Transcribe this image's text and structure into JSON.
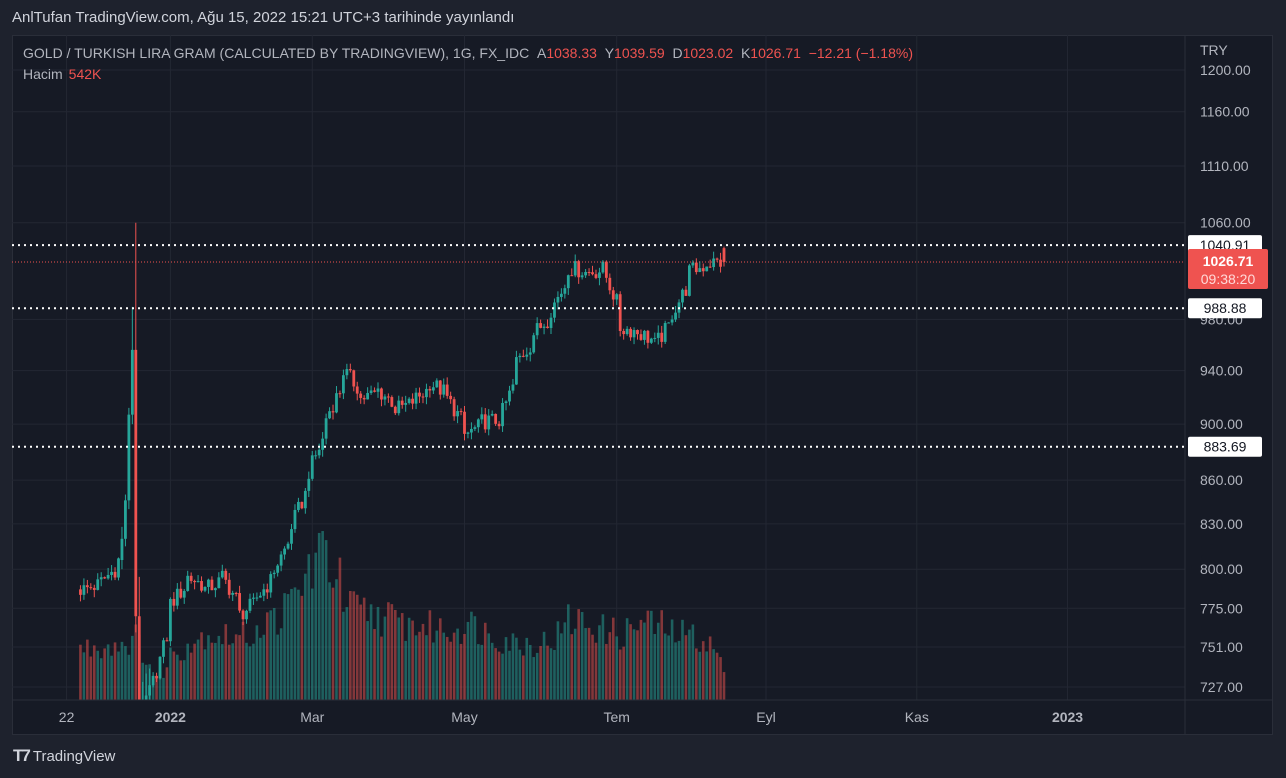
{
  "header": {
    "published_line": "AnlTufan TradingView.com, Ağu 15, 2022 15:21 UTC+3 tarihinde yayınlandı"
  },
  "legend": {
    "symbol": "GOLD / TURKISH LIRA GRAM (CALCULATED BY TRADINGVIEW), 1G, FX_IDC",
    "open_label": "A",
    "open": "1038.33",
    "high_label": "Y",
    "high": "1039.59",
    "low_label": "D",
    "low": "1023.02",
    "close_label": "K",
    "close": "1026.71",
    "change": "−12.21 (−1.18%)",
    "volume_label": "Hacim",
    "volume": "542K"
  },
  "footer": {
    "brand": "TradingView",
    "logo_icon": "tradingview-logo-icon"
  },
  "chart_data": {
    "type": "candlestick",
    "currency": "TRY",
    "y_scale": "log",
    "ylim": [
      727,
      1200
    ],
    "y_ticks": [
      "1200.00",
      "1160.00",
      "1110.00",
      "1060.00",
      "980.00",
      "940.00",
      "900.00",
      "860.00",
      "830.00",
      "800.00",
      "775.00",
      "751.00",
      "727.00"
    ],
    "x_ticks": [
      {
        "label": "22",
        "date": "2021-11-22",
        "bold": false
      },
      {
        "label": "2022",
        "date": "2022-01-01",
        "bold": true
      },
      {
        "label": "Mar",
        "date": "2022-03-01",
        "bold": false
      },
      {
        "label": "May",
        "date": "2022-05-01",
        "bold": false
      },
      {
        "label": "Tem",
        "date": "2022-07-01",
        "bold": false
      },
      {
        "label": "Eyl",
        "date": "2022-09-01",
        "bold": false
      },
      {
        "label": "Kas",
        "date": "2022-11-01",
        "bold": false
      },
      {
        "label": "2023",
        "date": "2023-01-01",
        "bold": true
      }
    ],
    "last_date": "2022-08-15",
    "horizontal_lines": [
      {
        "price": 1040.91,
        "label": "1040.91"
      },
      {
        "price": 988.88,
        "label": "988.88"
      },
      {
        "price": 883.69,
        "label": "883.69"
      }
    ],
    "last_price": {
      "price": 1026.71,
      "label": "1026.71",
      "countdown": "09:38:20"
    },
    "colors": {
      "up": "#26a69a",
      "down": "#ef5350",
      "background": "#161a25",
      "grid": "#232733",
      "hline": "#ffffff"
    },
    "grid": true,
    "weekly_close": [
      [
        "2021-11-29",
        787
      ],
      [
        "2021-12-06",
        792
      ],
      [
        "2021-12-13",
        806
      ],
      [
        "2021-12-20",
        956
      ],
      [
        "2021-12-27",
        730
      ],
      [
        "2022-01-03",
        778
      ],
      [
        "2022-01-10",
        795
      ],
      [
        "2022-01-17",
        787
      ],
      [
        "2022-01-24",
        795
      ],
      [
        "2022-01-31",
        771
      ],
      [
        "2022-02-07",
        782
      ],
      [
        "2022-02-14",
        800
      ],
      [
        "2022-02-21",
        829
      ],
      [
        "2022-02-28",
        866
      ],
      [
        "2022-03-07",
        905
      ],
      [
        "2022-03-14",
        940
      ],
      [
        "2022-03-21",
        919
      ],
      [
        "2022-03-28",
        925
      ],
      [
        "2022-04-04",
        911
      ],
      [
        "2022-04-11",
        917
      ],
      [
        "2022-04-18",
        931
      ],
      [
        "2022-04-25",
        919
      ],
      [
        "2022-05-02",
        892
      ],
      [
        "2022-05-09",
        902
      ],
      [
        "2022-05-16",
        903
      ],
      [
        "2022-05-23",
        947
      ],
      [
        "2022-05-30",
        969
      ],
      [
        "2022-06-06",
        988
      ],
      [
        "2022-06-13",
        1022
      ],
      [
        "2022-06-20",
        1018
      ],
      [
        "2022-06-27",
        1021
      ],
      [
        "2022-07-04",
        973
      ],
      [
        "2022-07-11",
        970
      ],
      [
        "2022-07-18",
        960
      ],
      [
        "2022-07-25",
        985
      ],
      [
        "2022-08-01",
        1019
      ],
      [
        "2022-08-08",
        1026
      ],
      [
        "2022-08-15",
        1026.71
      ]
    ],
    "daily_ohlc": [
      [
        "2021-12-14",
        806,
        828,
        800,
        820
      ],
      [
        "2021-12-15",
        820,
        850,
        815,
        846
      ],
      [
        "2021-12-16",
        846,
        912,
        840,
        907
      ],
      [
        "2021-12-17",
        907,
        990,
        900,
        956
      ],
      [
        "2021-12-20",
        956,
        1060,
        760,
        770
      ],
      [
        "2021-12-21",
        770,
        795,
        700,
        712
      ],
      [
        "2021-12-22",
        712,
        730,
        700,
        718
      ],
      [
        "2021-12-23",
        718,
        735,
        705,
        722
      ],
      [
        "2021-12-24",
        722,
        738,
        712,
        728
      ],
      [
        "2022-08-15",
        1038.33,
        1039.59,
        1023.02,
        1026.71
      ]
    ],
    "weekly_volume_k": [
      [
        "2021-11-29",
        1000
      ],
      [
        "2021-12-06",
        1050
      ],
      [
        "2021-12-13",
        1100
      ],
      [
        "2021-12-20",
        1200
      ],
      [
        "2021-12-27",
        300
      ],
      [
        "2022-01-03",
        900
      ],
      [
        "2022-01-10",
        1100
      ],
      [
        "2022-01-17",
        1300
      ],
      [
        "2022-01-24",
        1250
      ],
      [
        "2022-01-31",
        1200
      ],
      [
        "2022-02-07",
        1400
      ],
      [
        "2022-02-14",
        1600
      ],
      [
        "2022-02-21",
        1900
      ],
      [
        "2022-02-28",
        2600
      ],
      [
        "2022-03-07",
        2900
      ],
      [
        "2022-03-14",
        1800
      ],
      [
        "2022-03-21",
        1700
      ],
      [
        "2022-03-28",
        1650
      ],
      [
        "2022-04-04",
        1500
      ],
      [
        "2022-04-11",
        1450
      ],
      [
        "2022-04-18",
        1400
      ],
      [
        "2022-04-25",
        1350
      ],
      [
        "2022-05-02",
        1500
      ],
      [
        "2022-05-09",
        1350
      ],
      [
        "2022-05-16",
        1200
      ],
      [
        "2022-05-23",
        1100
      ],
      [
        "2022-05-30",
        1100
      ],
      [
        "2022-06-06",
        1150
      ],
      [
        "2022-06-13",
        1550
      ],
      [
        "2022-06-20",
        1500
      ],
      [
        "2022-06-27",
        1350
      ],
      [
        "2022-07-04",
        1250
      ],
      [
        "2022-07-11",
        1500
      ],
      [
        "2022-07-18",
        1450
      ],
      [
        "2022-07-25",
        1300
      ],
      [
        "2022-08-01",
        1250
      ],
      [
        "2022-08-08",
        1150
      ],
      [
        "2022-08-15",
        542
      ]
    ]
  }
}
